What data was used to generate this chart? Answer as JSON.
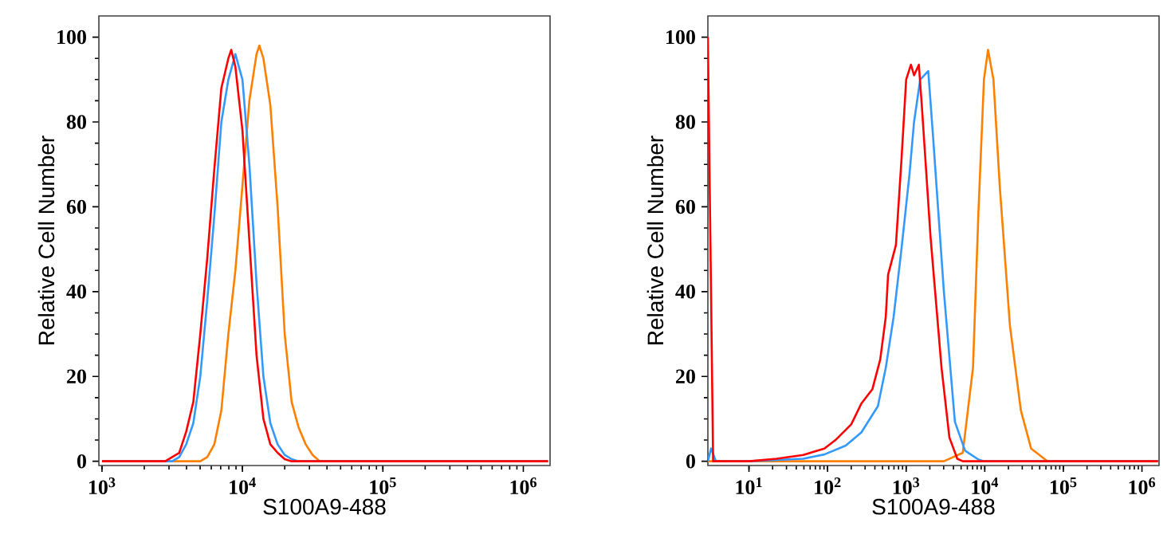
{
  "chart_data": [
    {
      "type": "line",
      "xlabel": "S100A9-488",
      "ylabel": "Relative Cell Number",
      "log": "x",
      "xlim": [
        950,
        1550000
      ],
      "ylim": [
        -1,
        105
      ],
      "xticks": [
        {
          "value": 1000,
          "label": "10$^{3}$"
        },
        {
          "value": 10000,
          "label": "10$^{4}$"
        },
        {
          "value": 100000,
          "label": "10$^{5}$"
        },
        {
          "value": 1000000,
          "label": "10$^{6}$"
        }
      ],
      "yticks": [
        0,
        20,
        40,
        60,
        80,
        100
      ],
      "grid": false,
      "marker": "none",
      "line_style": "solid",
      "series": [
        {
          "color": "#ff8000",
          "x": [
            1000,
            5010,
            5620,
            6310,
            7080,
            7940,
            8910,
            10000,
            11200,
            12600,
            13200,
            14100,
            15800,
            17800,
            20000,
            22400,
            25100,
            28200,
            31600,
            35500,
            1500000
          ],
          "values": [
            0,
            0,
            1,
            4,
            12,
            30,
            45,
            65,
            85,
            96,
            98,
            95,
            84,
            60,
            30,
            14,
            8,
            4,
            1.5,
            0,
            0
          ]
        },
        {
          "color": "#3399ff",
          "x": [
            1000,
            3160,
            3550,
            3980,
            4470,
            5010,
            5620,
            6310,
            7080,
            7940,
            8910,
            10000,
            11200,
            12600,
            14100,
            15800,
            17800,
            20000,
            22400,
            25100,
            1500000
          ],
          "values": [
            0,
            0,
            1,
            4,
            9,
            20,
            38,
            58,
            80,
            90,
            96,
            90,
            70,
            42,
            20,
            9,
            4,
            1.5,
            0.5,
            0,
            0
          ]
        },
        {
          "color": "#ff0000",
          "x": [
            1000,
            2820,
            3160,
            3550,
            3980,
            4470,
            5010,
            5620,
            6310,
            7080,
            7940,
            8320,
            8910,
            10000,
            11200,
            12600,
            14100,
            15800,
            17800,
            20000,
            22400,
            1500000
          ],
          "values": [
            0,
            0,
            1,
            2,
            7,
            14,
            30,
            48,
            69,
            88,
            95,
            97,
            93,
            78,
            52,
            25,
            10,
            4,
            2,
            0.5,
            0,
            0
          ]
        }
      ]
    },
    {
      "type": "line",
      "xlabel": "S100A9-488",
      "ylabel": "Relative Cell Number",
      "log": "x",
      "xlim": [
        3,
        1650000
      ],
      "ylim": [
        -1,
        105
      ],
      "xticks": [
        {
          "value": 10,
          "label": "10$^{1}$"
        },
        {
          "value": 100,
          "label": "10$^{2}$"
        },
        {
          "value": 1000,
          "label": "10$^{3}$"
        },
        {
          "value": 10000,
          "label": "10$^{4}$"
        },
        {
          "value": 100000,
          "label": "10$^{5}$"
        },
        {
          "value": 1000000,
          "label": "10$^{6}$"
        }
      ],
      "yticks": [
        0,
        20,
        40,
        60,
        80,
        100
      ],
      "grid": false,
      "marker": "none",
      "line_style": "solid",
      "series": [
        {
          "color": "#ff8000",
          "x": [
            3,
            3020,
            5250,
            7080,
            8320,
            9770,
            11000,
            12900,
            15500,
            20900,
            28800,
            38900,
            63100,
            1600000
          ],
          "values": [
            0,
            0,
            2,
            22,
            59,
            90,
            97,
            90,
            65,
            32,
            12,
            3,
            0,
            0
          ]
        },
        {
          "color": "#3399ff",
          "x": [
            3,
            3.3,
            3.8,
            10,
            49,
            91,
            170,
            269,
            437,
            550,
            692,
            871,
            1100,
            1260,
            1510,
            1910,
            2190,
            3020,
            4170,
            5620,
            8320,
            9770,
            1600000
          ],
          "values": [
            0,
            3,
            0,
            0,
            0.6,
            1.6,
            3.7,
            6.8,
            13,
            22,
            34,
            50,
            67.5,
            80,
            90,
            92,
            77,
            40,
            9.3,
            2.5,
            0.4,
            0,
            0
          ]
        },
        {
          "color": "#ff0000",
          "x": [
            3,
            3.5,
            10,
            22.4,
            49,
            91,
            126,
            200,
            269,
            372,
            468,
            550,
            589,
            741,
            871,
            1000,
            1150,
            1260,
            1450,
            1580,
            2040,
            2820,
            3550,
            4470,
            5250,
            1600000
          ],
          "values": [
            100,
            0,
            0,
            0.6,
            1.5,
            3,
            5,
            8.7,
            13.6,
            17,
            24,
            34,
            44,
            51,
            71,
            90,
            93.5,
            91,
            93.5,
            84,
            53,
            22,
            5.6,
            0.6,
            0,
            0
          ]
        }
      ]
    }
  ]
}
